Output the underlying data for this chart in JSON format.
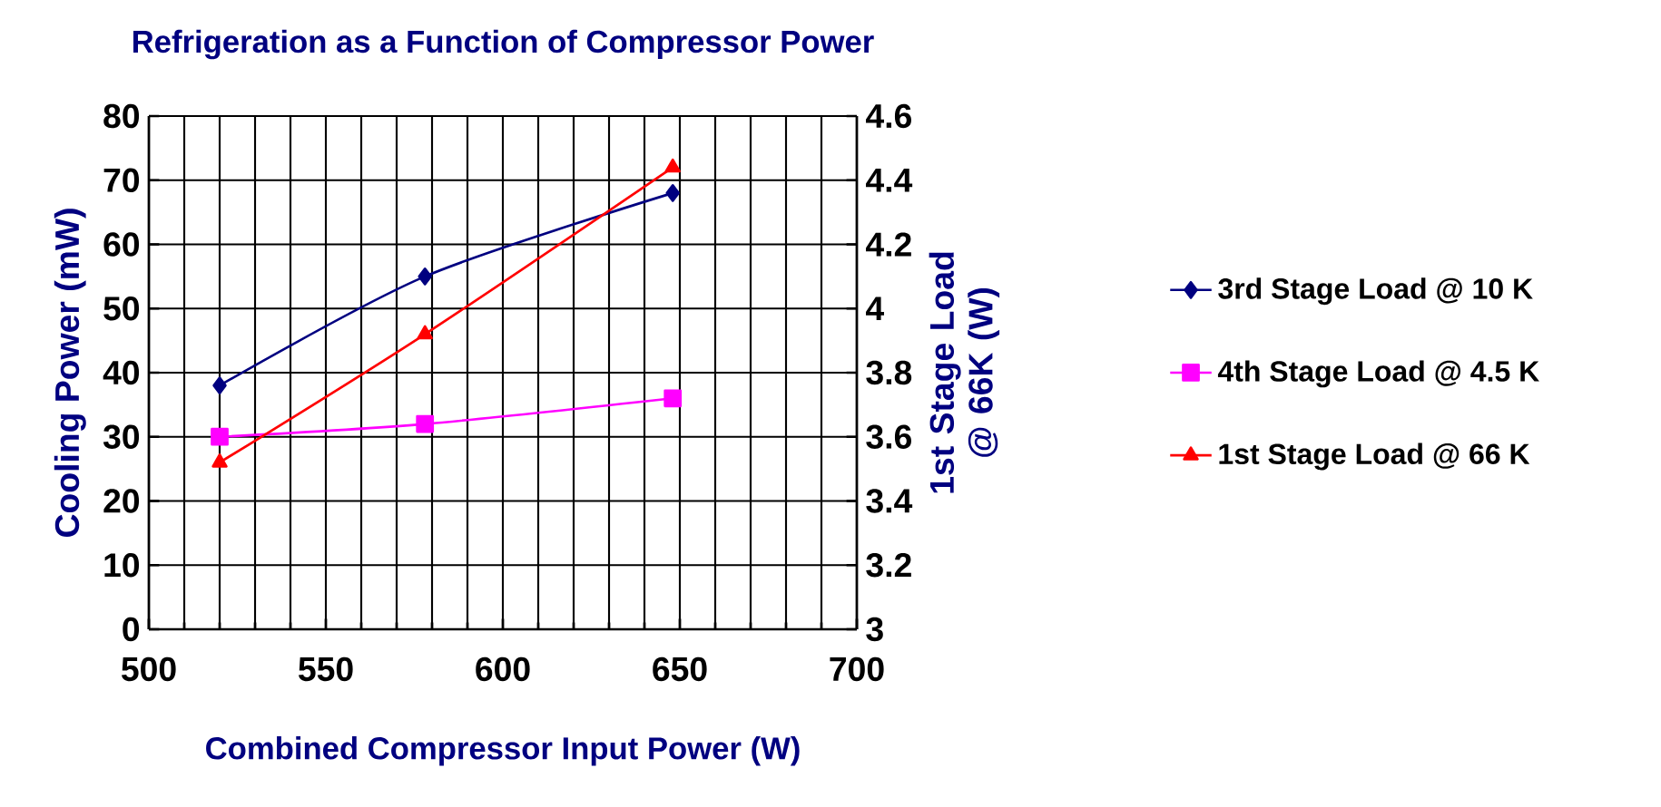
{
  "chart_data": {
    "type": "line",
    "title": "Refrigeration as a Function of Compressor Power",
    "xlabel": "Combined Compressor Input Power (W)",
    "ylabel": "Cooling Power (mW)",
    "y2label": "1st Stage Load @ 66K (W)",
    "x": [
      520,
      578,
      648
    ],
    "series": [
      {
        "name": "3rd Stage Load @ 10 K",
        "color": "#000080",
        "marker": "diamond",
        "values": [
          38,
          55,
          68
        ]
      },
      {
        "name": "4th Stage Load @ 4.5 K",
        "color": "#ff00ff",
        "marker": "square",
        "values": [
          30,
          32,
          36
        ]
      },
      {
        "name": "1st Stage Load @ 66 K",
        "color": "#ff0000",
        "marker": "triangle",
        "axis": "y2",
        "values": [
          3.52,
          3.92,
          4.44
        ]
      }
    ],
    "xlim": [
      500,
      700
    ],
    "xticks": [
      500,
      550,
      600,
      650,
      700
    ],
    "ylim": [
      0,
      80
    ],
    "yticks": [
      0,
      10,
      20,
      30,
      40,
      50,
      60,
      70,
      80
    ],
    "y2lim": [
      3,
      4.6
    ],
    "y2ticks": [
      3,
      3.2,
      3.4,
      3.6,
      3.8,
      4,
      4.2,
      4.4,
      4.6
    ],
    "grid": true,
    "legend": "right",
    "line_style": "solid"
  }
}
